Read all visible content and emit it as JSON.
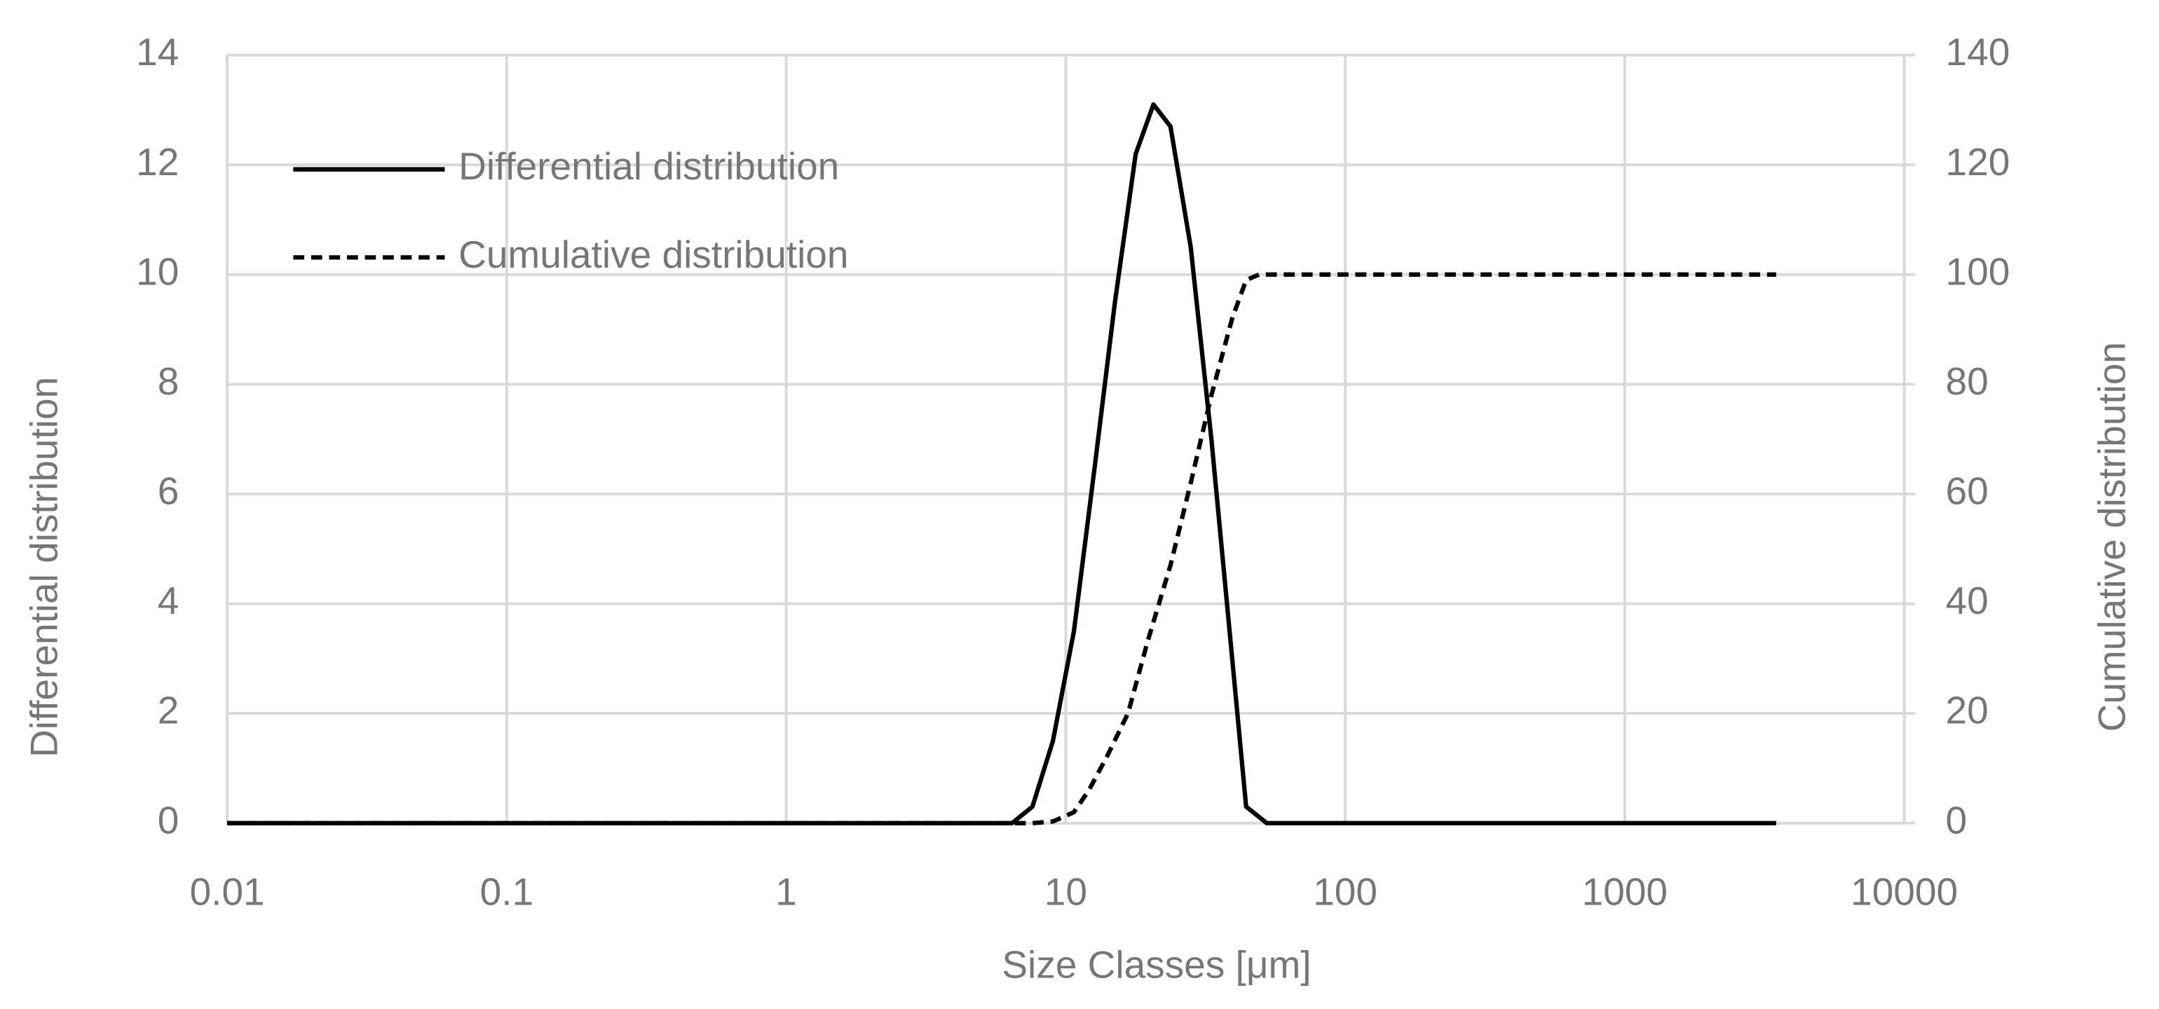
{
  "chart_data": {
    "type": "line",
    "x_label": "Size Classes [μm]",
    "y_label": "Differential distribution",
    "y2_label": "Cumulative distribution",
    "x_scale": "log",
    "xlim": [
      0.01,
      10000
    ],
    "xticks": [
      0.01,
      0.1,
      1,
      10,
      100,
      1000,
      10000
    ],
    "ylim": [
      0,
      14
    ],
    "yticks": [
      0,
      2,
      4,
      6,
      8,
      10,
      12,
      14
    ],
    "y2lim": [
      0,
      140
    ],
    "y2ticks": [
      0,
      20,
      40,
      60,
      80,
      100,
      120,
      140
    ],
    "grid": true,
    "legend": "upper left",
    "series": [
      {
        "name": "Differential distribution",
        "color": "#000000",
        "linestyle": "solid",
        "x": [
          0.01,
          6.43,
          7.6,
          9.0,
          10.7,
          12.7,
          15.0,
          17.8,
          20.6,
          23.7,
          28.0,
          33.2,
          39.4,
          44.2,
          52.4,
          3480
        ],
        "values": [
          0,
          0,
          0.3,
          1.5,
          3.5,
          6.5,
          9.5,
          12.2,
          13.1,
          12.7,
          10.5,
          7.0,
          3.0,
          0.3,
          0,
          0
        ]
      },
      {
        "name": "Cumulative distribution",
        "color": "#000000",
        "linestyle": "dashed",
        "axis": "y2",
        "x": [
          0.01,
          7.6,
          9.0,
          10.7,
          12.1,
          14.0,
          16.7,
          19.6,
          23.7,
          28.0,
          33.2,
          39.4,
          44.2,
          49.2,
          3480
        ],
        "values": [
          0,
          0,
          0.3,
          2,
          6,
          12,
          20,
          33,
          47,
          62,
          78,
          92,
          99,
          100,
          100
        ]
      }
    ]
  }
}
